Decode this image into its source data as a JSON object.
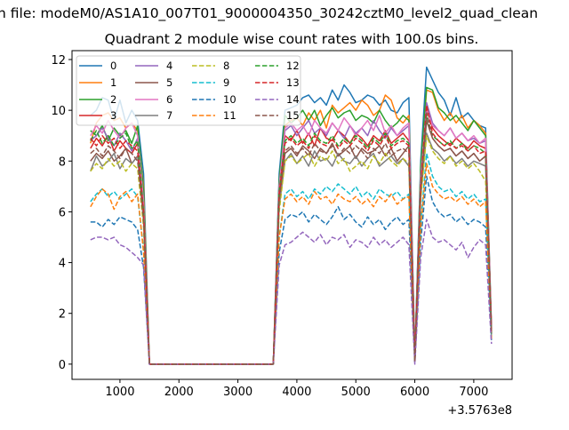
{
  "chart_data": {
    "type": "line",
    "suptitle": "n file: modeM0/AS1A10_007T01_9000004350_30242cztM0_level2_quad_clean",
    "title": "Quadrant 2 module wise count rates with 100.0s bins.",
    "xlabel": "",
    "ylabel": "",
    "x_offset_label": "+3.5763e8",
    "xlim": [
      187,
      7650
    ],
    "ylim": [
      -0.6,
      12.35
    ],
    "xticks": [
      1000,
      2000,
      3000,
      4000,
      5000,
      6000,
      7000
    ],
    "xtick_labels": [
      "1000",
      "2000",
      "3000",
      "4000",
      "5000",
      "6000",
      "7000"
    ],
    "yticks": [
      0,
      2,
      4,
      6,
      8,
      10,
      12
    ],
    "ytick_labels": [
      "0",
      "2",
      "4",
      "6",
      "8",
      "10",
      "12"
    ],
    "grid": false,
    "legend_placement": "top-left",
    "legend_columns": 4,
    "x": [
      500,
      600,
      700,
      800,
      900,
      1000,
      1100,
      1200,
      1300,
      1400,
      1500,
      1600,
      1700,
      1800,
      1900,
      2000,
      2100,
      2200,
      2300,
      2400,
      2500,
      2600,
      2700,
      2800,
      2900,
      3000,
      3100,
      3200,
      3300,
      3400,
      3500,
      3600,
      3700,
      3800,
      3900,
      4000,
      4100,
      4200,
      4300,
      4400,
      4500,
      4600,
      4700,
      4800,
      4900,
      5000,
      5100,
      5200,
      5300,
      5400,
      5500,
      5600,
      5700,
      5800,
      5900,
      6000,
      6100,
      6200,
      6300,
      6400,
      6500,
      6600,
      6700,
      6800,
      6900,
      7000,
      7100,
      7200,
      7300
    ],
    "series": [
      {
        "name": "0",
        "color": "#1f77b4",
        "dashed": false,
        "values": [
          9.8,
          10.0,
          10.5,
          10.4,
          9.6,
          10.4,
          9.5,
          10.0,
          9.6,
          7.5,
          0,
          0,
          0,
          0,
          0,
          0,
          0,
          0,
          0,
          0,
          0,
          0,
          0,
          0,
          0,
          0,
          0,
          0,
          0,
          0,
          0,
          0,
          7.5,
          10.0,
          10.1,
          10.2,
          10.5,
          10.6,
          10.3,
          10.5,
          10.2,
          10.8,
          10.4,
          11.0,
          10.7,
          10.3,
          10.4,
          10.6,
          10.5,
          10.2,
          10.4,
          10.0,
          9.9,
          10.3,
          10.5,
          0.3,
          8.0,
          11.7,
          11.2,
          10.7,
          10.4,
          9.8,
          10.5,
          9.7,
          9.9,
          9.6,
          9.4,
          9.3,
          1.5
        ]
      },
      {
        "name": "1",
        "color": "#ff7f0e",
        "dashed": false,
        "values": [
          8.7,
          9.5,
          9.8,
          9.9,
          9.6,
          9.7,
          9.3,
          9.5,
          9.2,
          7.0,
          0,
          0,
          0,
          0,
          0,
          0,
          0,
          0,
          0,
          0,
          0,
          0,
          0,
          0,
          0,
          0,
          0,
          0,
          0,
          0,
          0,
          0,
          7.0,
          9.4,
          9.6,
          9.7,
          9.4,
          9.9,
          9.6,
          10.0,
          9.3,
          10.2,
          9.9,
          10.1,
          10.3,
          10.0,
          10.4,
          10.2,
          9.8,
          10.0,
          10.6,
          10.4,
          9.7,
          9.5,
          9.8,
          0.2,
          7.5,
          10.8,
          10.7,
          10.0,
          9.6,
          9.9,
          9.5,
          9.8,
          9.3,
          9.6,
          9.4,
          9.1,
          1.4
        ]
      },
      {
        "name": "2",
        "color": "#2ca02c",
        "dashed": false,
        "values": [
          9.2,
          9.0,
          9.4,
          8.8,
          9.3,
          9.0,
          9.2,
          8.7,
          9.4,
          6.8,
          0,
          0,
          0,
          0,
          0,
          0,
          0,
          0,
          0,
          0,
          0,
          0,
          0,
          0,
          0,
          0,
          0,
          0,
          0,
          0,
          0,
          0,
          7.2,
          9.8,
          9.5,
          9.7,
          10.0,
          9.6,
          10.0,
          9.4,
          9.8,
          10.1,
          9.7,
          9.9,
          10.0,
          9.6,
          9.8,
          9.7,
          9.5,
          10.0,
          9.6,
          9.3,
          9.5,
          9.8,
          9.6,
          0.2,
          7.8,
          10.9,
          10.8,
          10.1,
          9.9,
          9.6,
          9.8,
          9.5,
          9.2,
          9.6,
          9.3,
          9.0,
          1.3
        ]
      },
      {
        "name": "3",
        "color": "#d62728",
        "dashed": false,
        "values": [
          8.5,
          8.9,
          8.6,
          9.0,
          8.4,
          8.8,
          8.5,
          8.3,
          8.7,
          6.2,
          0,
          0,
          0,
          0,
          0,
          0,
          0,
          0,
          0,
          0,
          0,
          0,
          0,
          0,
          0,
          0,
          0,
          0,
          0,
          0,
          0,
          0,
          6.8,
          9.0,
          8.8,
          9.2,
          8.7,
          9.1,
          8.6,
          9.3,
          8.9,
          8.8,
          9.2,
          9.0,
          8.7,
          9.1,
          8.9,
          8.6,
          9.0,
          8.8,
          9.2,
          8.7,
          8.9,
          9.1,
          8.8,
          0.1,
          7.0,
          10.1,
          9.3,
          9.0,
          8.8,
          8.6,
          8.9,
          8.7,
          8.5,
          8.8,
          8.6,
          8.5,
          1.4
        ]
      },
      {
        "name": "4",
        "color": "#9467bd",
        "dashed": false,
        "values": [
          8.8,
          9.0,
          9.3,
          8.9,
          8.6,
          9.1,
          8.8,
          8.4,
          8.9,
          6.0,
          0,
          0,
          0,
          0,
          0,
          0,
          0,
          0,
          0,
          0,
          0,
          0,
          0,
          0,
          0,
          0,
          0,
          0,
          0,
          0,
          0,
          0,
          6.9,
          9.2,
          9.4,
          9.0,
          9.3,
          9.6,
          9.1,
          9.3,
          9.0,
          9.5,
          9.2,
          8.9,
          9.4,
          9.1,
          9.3,
          9.0,
          9.6,
          9.2,
          8.9,
          9.3,
          9.0,
          9.2,
          9.4,
          0.1,
          7.2,
          10.3,
          9.5,
          9.2,
          9.0,
          9.3,
          8.9,
          9.1,
          8.8,
          8.9,
          8.7,
          8.8,
          1.3
        ]
      },
      {
        "name": "5",
        "color": "#8c564b",
        "dashed": false,
        "values": [
          8.0,
          8.3,
          8.1,
          8.4,
          8.0,
          8.2,
          8.5,
          7.9,
          8.2,
          5.8,
          0,
          0,
          0,
          0,
          0,
          0,
          0,
          0,
          0,
          0,
          0,
          0,
          0,
          0,
          0,
          0,
          0,
          0,
          0,
          0,
          0,
          0,
          6.4,
          8.3,
          8.5,
          8.2,
          8.6,
          8.4,
          8.1,
          8.5,
          8.3,
          8.7,
          8.2,
          8.4,
          8.6,
          8.1,
          8.5,
          8.3,
          8.4,
          8.6,
          8.2,
          8.5,
          8.0,
          8.3,
          8.6,
          0.1,
          6.8,
          9.6,
          8.9,
          8.6,
          8.4,
          8.5,
          8.2,
          8.4,
          8.1,
          8.3,
          8.0,
          8.2,
          1.2
        ]
      },
      {
        "name": "6",
        "color": "#e377c2",
        "dashed": false,
        "values": [
          9.0,
          9.4,
          9.1,
          9.6,
          9.2,
          8.9,
          9.3,
          9.5,
          9.0,
          6.4,
          0,
          0,
          0,
          0,
          0,
          0,
          0,
          0,
          0,
          0,
          0,
          0,
          0,
          0,
          0,
          0,
          0,
          0,
          0,
          0,
          0,
          0,
          7.0,
          9.3,
          9.5,
          9.2,
          9.4,
          9.0,
          9.6,
          9.3,
          9.1,
          9.5,
          9.2,
          9.7,
          9.4,
          9.0,
          9.3,
          9.6,
          9.2,
          9.8,
          9.1,
          9.4,
          9.0,
          9.3,
          9.5,
          0.2,
          7.4,
          10.0,
          9.4,
          9.2,
          9.0,
          9.3,
          8.9,
          9.1,
          8.8,
          9.0,
          8.7,
          8.9,
          1.3
        ]
      },
      {
        "name": "7",
        "color": "#7f7f7f",
        "dashed": false,
        "values": [
          7.6,
          8.2,
          7.8,
          8.0,
          8.3,
          7.7,
          8.1,
          7.9,
          8.2,
          5.6,
          0,
          0,
          0,
          0,
          0,
          0,
          0,
          0,
          0,
          0,
          0,
          0,
          0,
          0,
          0,
          0,
          0,
          0,
          0,
          0,
          0,
          0,
          6.2,
          8.0,
          8.3,
          7.9,
          8.2,
          7.8,
          8.4,
          8.0,
          8.1,
          7.8,
          8.3,
          8.0,
          7.9,
          8.2,
          7.8,
          8.1,
          8.3,
          7.8,
          8.0,
          8.2,
          7.9,
          8.1,
          7.8,
          0.1,
          6.6,
          9.1,
          8.5,
          8.3,
          8.0,
          8.2,
          7.9,
          8.1,
          7.8,
          8.0,
          7.9,
          7.8,
          1.1
        ]
      },
      {
        "name": "8",
        "color": "#bcbd22",
        "dashed": true,
        "values": [
          7.6,
          7.9,
          7.7,
          8.1,
          7.8,
          8.0,
          7.6,
          7.9,
          7.7,
          5.4,
          0,
          0,
          0,
          0,
          0,
          0,
          0,
          0,
          0,
          0,
          0,
          0,
          0,
          0,
          0,
          0,
          0,
          0,
          0,
          0,
          0,
          0,
          6.0,
          8.0,
          8.2,
          7.9,
          8.1,
          8.3,
          7.8,
          8.2,
          8.0,
          8.4,
          7.9,
          8.1,
          7.6,
          7.8,
          8.0,
          7.7,
          8.2,
          7.9,
          8.3,
          8.0,
          7.8,
          8.1,
          7.9,
          0.1,
          6.5,
          9.0,
          8.4,
          8.1,
          7.9,
          8.2,
          7.8,
          8.0,
          7.7,
          7.9,
          7.6,
          7.2,
          1.0
        ]
      },
      {
        "name": "9",
        "color": "#17becf",
        "dashed": true,
        "values": [
          6.4,
          6.7,
          6.9,
          6.6,
          6.8,
          6.5,
          6.7,
          6.9,
          6.6,
          4.5,
          0,
          0,
          0,
          0,
          0,
          0,
          0,
          0,
          0,
          0,
          0,
          0,
          0,
          0,
          0,
          0,
          0,
          0,
          0,
          0,
          0,
          0,
          5.0,
          6.7,
          6.9,
          6.6,
          6.8,
          6.5,
          6.9,
          6.7,
          7.0,
          6.8,
          7.1,
          6.9,
          6.7,
          7.0,
          6.6,
          6.8,
          6.5,
          6.9,
          6.7,
          6.6,
          6.8,
          6.5,
          6.7,
          0.1,
          5.5,
          8.3,
          7.4,
          7.0,
          6.8,
          6.9,
          6.6,
          6.8,
          6.5,
          6.7,
          6.4,
          6.5,
          1.0
        ]
      },
      {
        "name": "10",
        "color": "#1f77b4",
        "dashed": true,
        "values": [
          5.6,
          5.6,
          5.4,
          5.7,
          5.5,
          5.8,
          5.7,
          5.6,
          5.3,
          3.8,
          0,
          0,
          0,
          0,
          0,
          0,
          0,
          0,
          0,
          0,
          0,
          0,
          0,
          0,
          0,
          0,
          0,
          0,
          0,
          0,
          0,
          0,
          4.4,
          5.7,
          5.9,
          5.8,
          6.0,
          5.6,
          5.9,
          5.7,
          5.5,
          5.8,
          6.2,
          5.7,
          5.9,
          5.6,
          5.4,
          5.8,
          5.5,
          5.7,
          5.3,
          5.6,
          5.8,
          5.5,
          5.7,
          0.1,
          4.8,
          7.4,
          6.4,
          6.0,
          5.8,
          5.9,
          5.6,
          5.8,
          5.5,
          5.7,
          5.6,
          5.4,
          0.9
        ]
      },
      {
        "name": "11",
        "color": "#ff7f0e",
        "dashed": true,
        "values": [
          6.2,
          6.6,
          6.9,
          6.7,
          6.1,
          6.6,
          6.8,
          6.4,
          6.7,
          4.4,
          0,
          0,
          0,
          0,
          0,
          0,
          0,
          0,
          0,
          0,
          0,
          0,
          0,
          0,
          0,
          0,
          0,
          0,
          0,
          0,
          0,
          0,
          5.0,
          6.5,
          6.7,
          6.4,
          6.6,
          6.3,
          6.8,
          6.5,
          6.6,
          6.3,
          6.7,
          6.5,
          6.4,
          6.6,
          6.3,
          6.5,
          6.2,
          6.6,
          6.4,
          6.7,
          6.3,
          6.5,
          6.6,
          0.1,
          5.4,
          7.9,
          7.0,
          6.7,
          6.5,
          6.6,
          6.4,
          6.6,
          6.3,
          6.5,
          6.2,
          6.4,
          1.0
        ]
      },
      {
        "name": "12",
        "color": "#2ca02c",
        "dashed": true,
        "values": [
          8.8,
          9.2,
          8.7,
          9.0,
          8.6,
          8.9,
          9.1,
          8.5,
          8.8,
          6.0,
          0,
          0,
          0,
          0,
          0,
          0,
          0,
          0,
          0,
          0,
          0,
          0,
          0,
          0,
          0,
          0,
          0,
          0,
          0,
          0,
          0,
          0,
          6.8,
          8.8,
          9.0,
          8.7,
          8.9,
          8.6,
          9.1,
          8.8,
          8.7,
          9.0,
          8.6,
          8.9,
          8.7,
          9.0,
          8.8,
          8.5,
          8.9,
          8.7,
          9.1,
          8.6,
          8.8,
          8.9,
          8.7,
          0.1,
          7.0,
          9.8,
          9.0,
          8.8,
          8.6,
          8.8,
          8.5,
          8.7,
          8.4,
          8.6,
          8.5,
          8.3,
          1.2
        ]
      },
      {
        "name": "13",
        "color": "#d62728",
        "dashed": true,
        "values": [
          8.9,
          8.6,
          9.0,
          8.7,
          8.9,
          8.5,
          8.8,
          8.6,
          8.4,
          6.0,
          0,
          0,
          0,
          0,
          0,
          0,
          0,
          0,
          0,
          0,
          0,
          0,
          0,
          0,
          0,
          0,
          0,
          0,
          0,
          0,
          0,
          0,
          6.7,
          8.7,
          8.9,
          8.6,
          8.8,
          8.5,
          9.0,
          8.7,
          8.6,
          8.9,
          8.5,
          8.8,
          8.6,
          8.9,
          8.7,
          8.4,
          8.8,
          8.6,
          9.0,
          8.5,
          8.7,
          8.8,
          8.6,
          0.1,
          7.0,
          10.2,
          9.1,
          8.8,
          8.6,
          8.7,
          8.5,
          8.6,
          8.4,
          8.6,
          8.3,
          8.4,
          1.2
        ]
      },
      {
        "name": "14",
        "color": "#9467bd",
        "dashed": true,
        "values": [
          4.9,
          5.0,
          5.0,
          4.9,
          5.0,
          4.7,
          4.6,
          4.4,
          4.2,
          3.9,
          0,
          0,
          0,
          0,
          0,
          0,
          0,
          0,
          0,
          0,
          0,
          0,
          0,
          0,
          0,
          0,
          0,
          0,
          0,
          0,
          0,
          0,
          3.9,
          4.7,
          4.8,
          5.0,
          5.2,
          5.0,
          4.8,
          5.1,
          4.7,
          5.0,
          4.9,
          5.1,
          4.6,
          4.9,
          4.8,
          4.6,
          5.0,
          4.7,
          4.9,
          4.6,
          4.8,
          5.0,
          4.7,
          0.0,
          4.2,
          5.7,
          5.0,
          4.8,
          4.9,
          4.7,
          4.5,
          4.8,
          4.2,
          4.6,
          4.9,
          4.7,
          0.8
        ]
      },
      {
        "name": "15",
        "color": "#8c564b",
        "dashed": true,
        "values": [
          8.3,
          8.5,
          8.2,
          8.6,
          8.4,
          8.1,
          8.5,
          8.3,
          8.0,
          5.7,
          0,
          0,
          0,
          0,
          0,
          0,
          0,
          0,
          0,
          0,
          0,
          0,
          0,
          0,
          0,
          0,
          0,
          0,
          0,
          0,
          0,
          0,
          6.4,
          8.4,
          8.6,
          8.3,
          8.5,
          8.2,
          8.7,
          8.4,
          8.3,
          8.6,
          8.2,
          8.5,
          8.3,
          8.6,
          8.4,
          8.1,
          8.5,
          8.3,
          8.7,
          8.2,
          8.4,
          8.5,
          8.3,
          0.1,
          6.8,
          9.9,
          8.9,
          8.6,
          8.4,
          8.5,
          8.2,
          8.4,
          8.1,
          8.3,
          8.0,
          8.2,
          1.2
        ]
      }
    ]
  }
}
